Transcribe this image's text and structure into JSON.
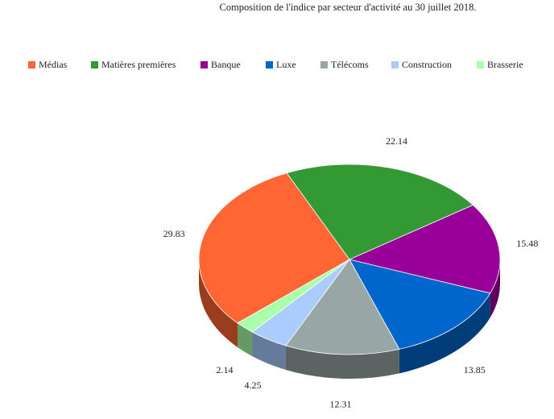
{
  "chart_data": {
    "type": "pie",
    "title": "Composition de l'indice par secteur d'activité au 30 juillet 2018.",
    "categories": [
      "Médias",
      "Matières premières",
      "Banque",
      "Luxe",
      "Télécoms",
      "Construction",
      "Brasserie"
    ],
    "values": [
      29.83,
      22.14,
      15.48,
      13.85,
      12.31,
      4.25,
      2.14
    ],
    "colors": [
      "#ff6633",
      "#339933",
      "#990099",
      "#0066cc",
      "#99a6a6",
      "#aaccff",
      "#aaffaa"
    ],
    "legend": "top"
  }
}
